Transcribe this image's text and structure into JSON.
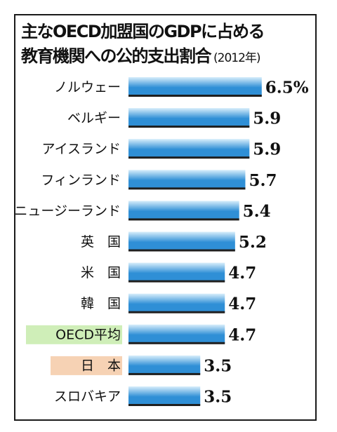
{
  "title_line1": "主なOECD加盟国のGDPに占める",
  "title_line2": "教育機関への公的支出割合",
  "year_note": "(2012年)",
  "colors": {
    "bar_dark": "#2f8fd6",
    "bar_light": "#d8eefb",
    "oecd_highlight": "#cfeeb8",
    "japan_highlight": "#f6d2b4"
  },
  "chart_data": {
    "type": "bar",
    "orientation": "horizontal",
    "title": "主なOECD加盟国のGDPに占める教育機関への公的支出割合 (2012年)",
    "categories": [
      "ノルウェー",
      "ベルギー",
      "アイスランド",
      "フィンランド",
      "ニュージーランド",
      "英　国",
      "米　国",
      "韓　国",
      "OECD平均",
      "日　本",
      "スロバキア"
    ],
    "values": [
      6.5,
      5.9,
      5.9,
      5.7,
      5.4,
      5.2,
      4.7,
      4.7,
      4.7,
      3.5,
      3.5
    ],
    "value_labels": [
      "6.5%",
      "5.9",
      "5.9",
      "5.7",
      "5.4",
      "5.2",
      "4.7",
      "4.7",
      "4.7",
      "3.5",
      "3.5"
    ],
    "highlights": {
      "OECD平均": "oecd",
      "日　本": "japan"
    },
    "xlim": [
      0,
      6.5
    ],
    "grid": false,
    "legend": "none"
  }
}
